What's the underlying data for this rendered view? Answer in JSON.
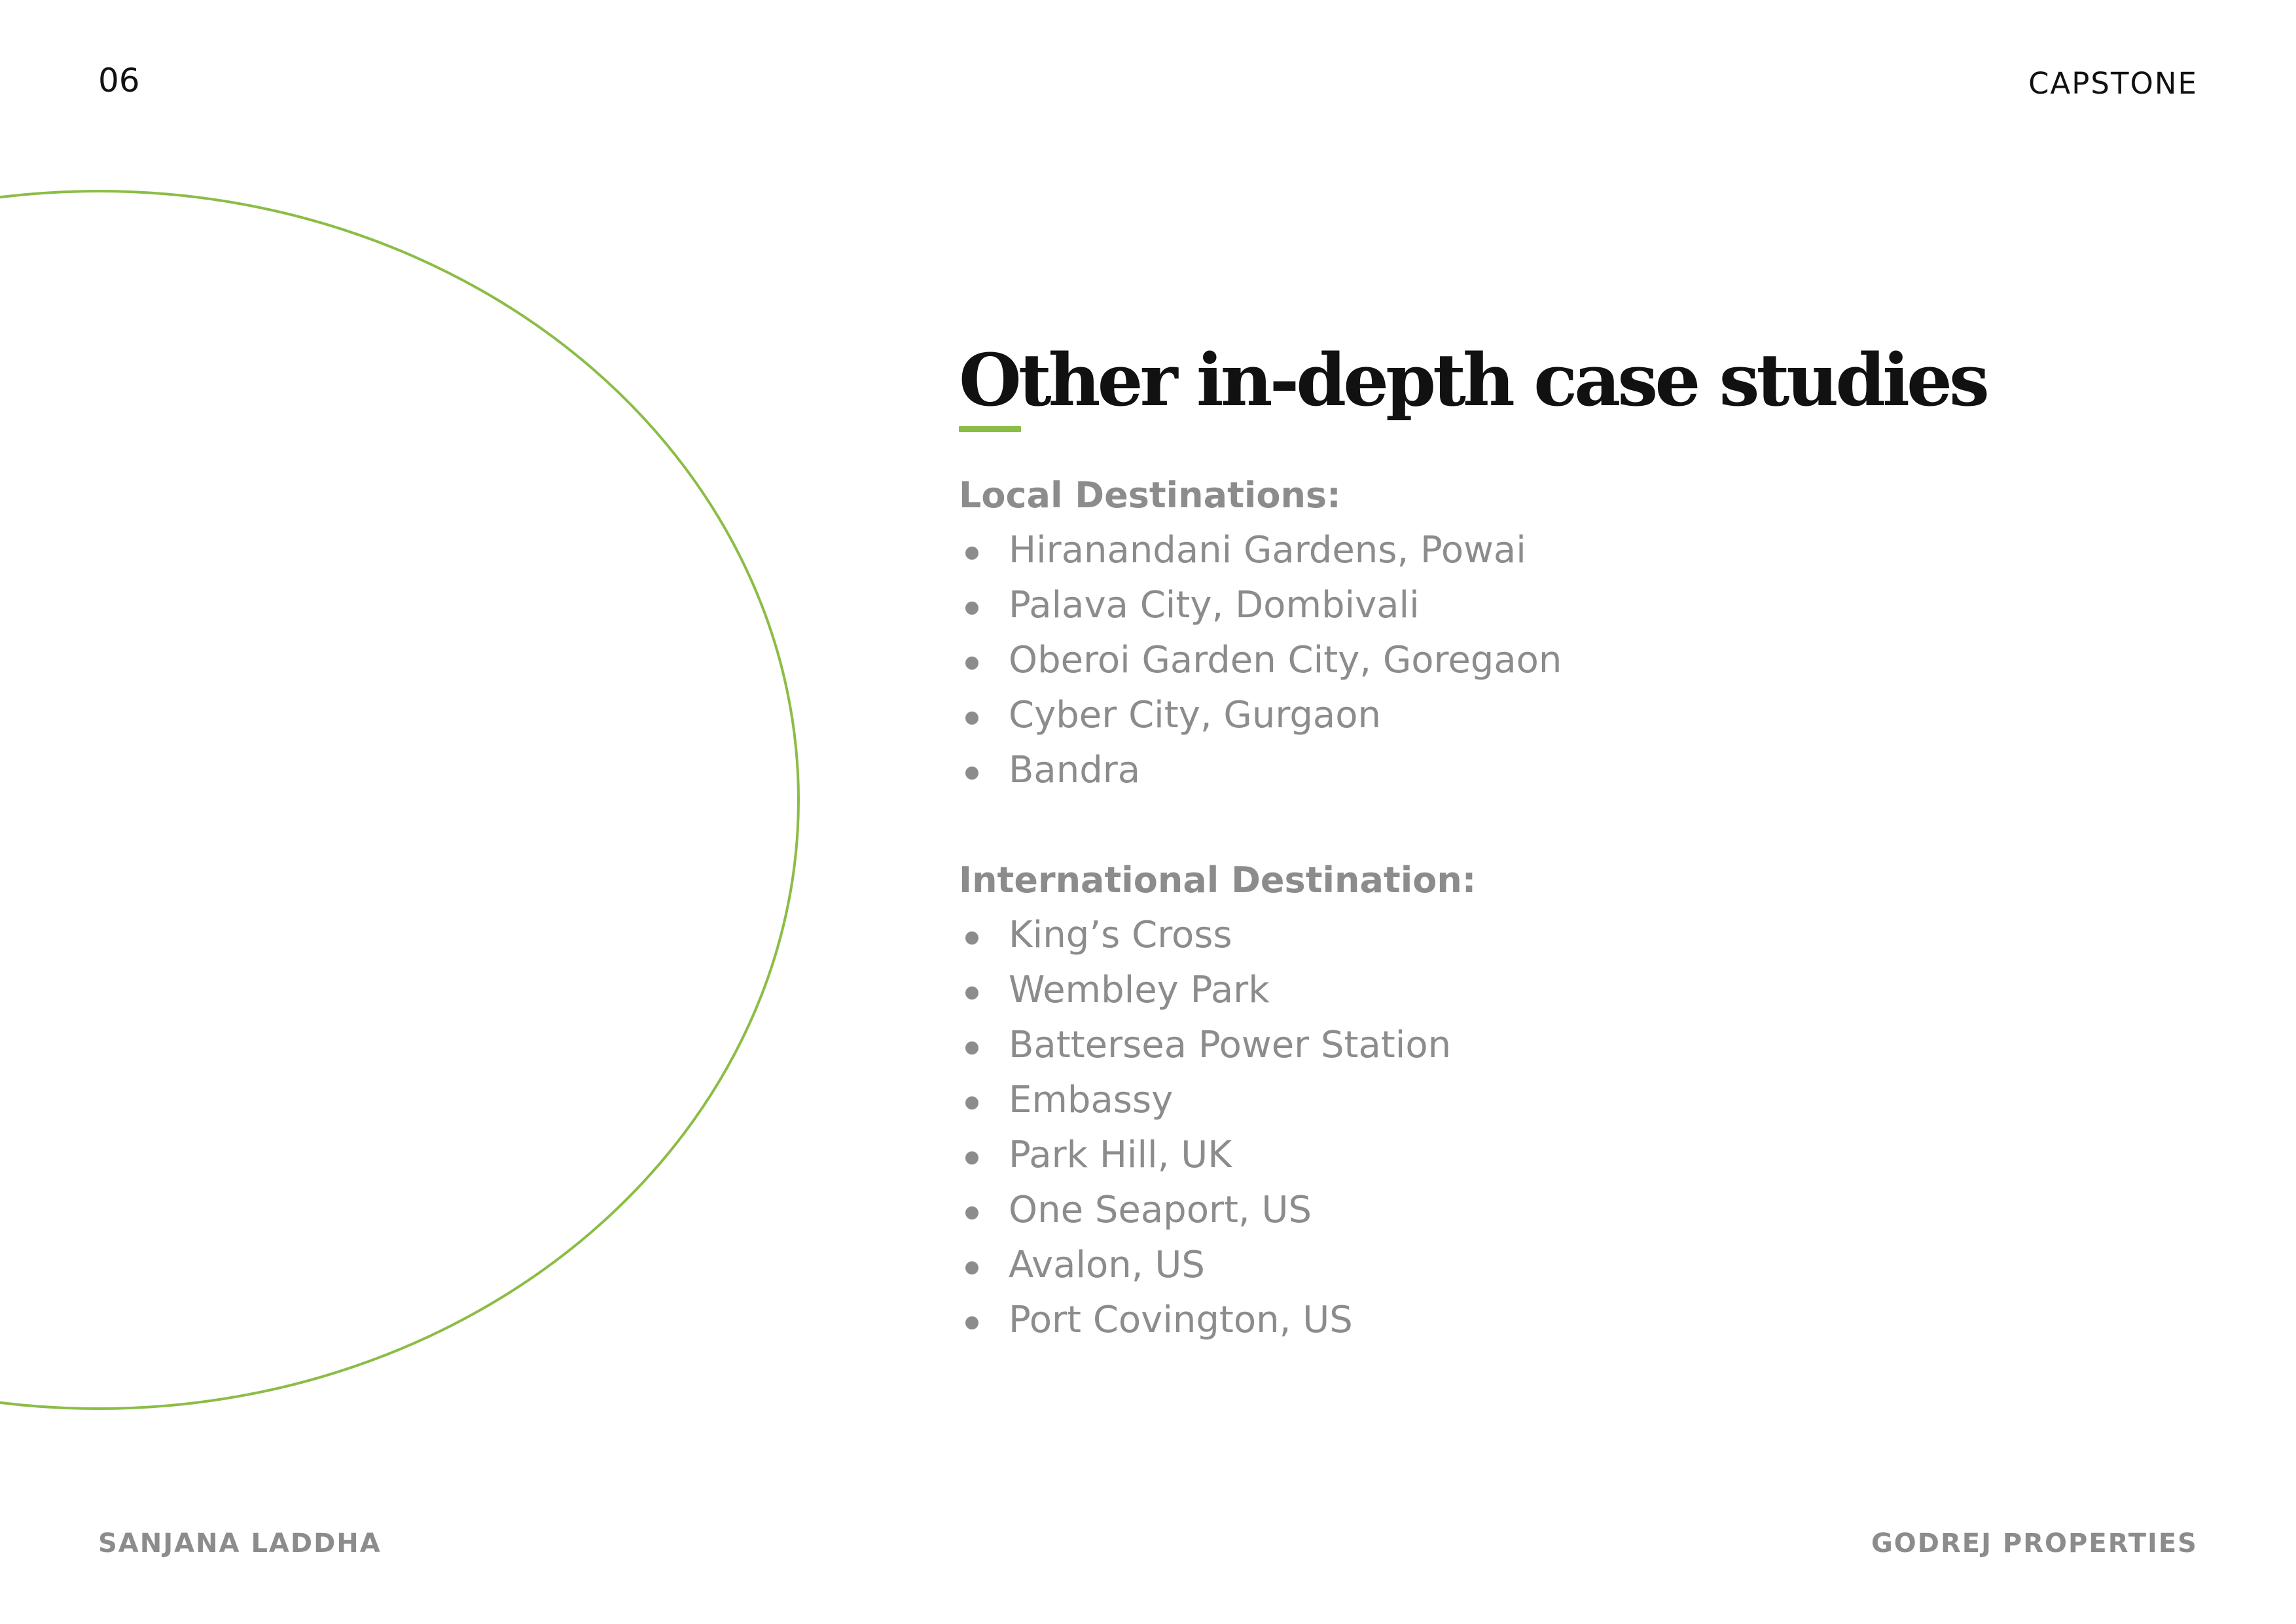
{
  "header": {
    "page_number": "06",
    "label": "CAPSTONE"
  },
  "main": {
    "title": "Other in-depth case studies",
    "local": {
      "heading": "Local Destinations:",
      "items": [
        "Hiranandani Gardens, Powai",
        "Palava City, Dombivali",
        "Oberoi Garden City, Goregaon",
        "Cyber City, Gurgaon",
        "Bandra"
      ]
    },
    "international": {
      "heading": "International Destination:",
      "items": [
        "King’s Cross",
        "Wembley Park",
        "Battersea Power Station",
        "Embassy",
        "Park Hill, UK",
        "One Seaport, US",
        "Avalon, US",
        "Port Covington, US"
      ]
    }
  },
  "footer": {
    "author": "SANJANA LADDHA",
    "company": "GODREJ PROPERTIES"
  },
  "colors": {
    "accent": "#8bbd46",
    "text_dark": "#111111",
    "text_muted": "#8c8c8c",
    "background": "#ffffff"
  }
}
